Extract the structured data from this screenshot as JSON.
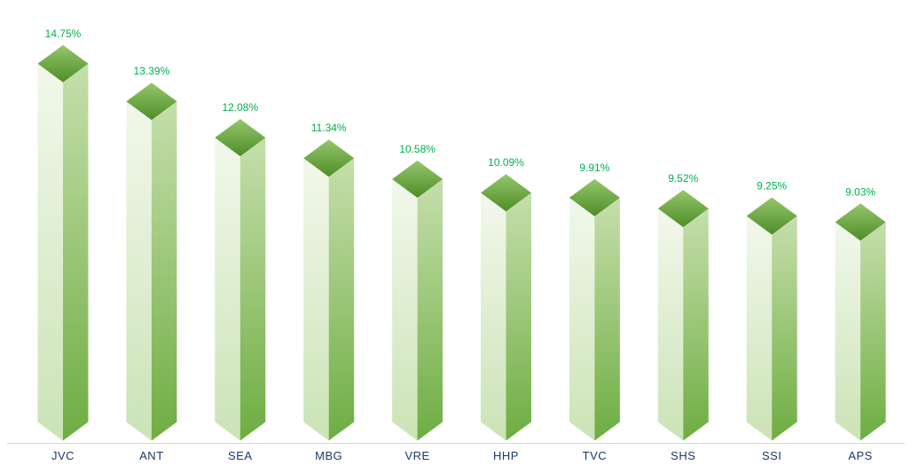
{
  "chart_data": {
    "type": "bar",
    "variant": "3d-column-diamond-top",
    "title": "",
    "xlabel": "",
    "ylabel": "",
    "grid": false,
    "legend": false,
    "categories": [
      "JVC",
      "ANT",
      "SEA",
      "MBG",
      "VRE",
      "HHP",
      "TVC",
      "SHS",
      "SSI",
      "APS"
    ],
    "values": [
      14.75,
      13.39,
      12.08,
      11.34,
      10.58,
      10.09,
      9.91,
      9.52,
      9.25,
      9.03
    ],
    "value_labels": [
      "14.75%",
      "13.39%",
      "12.08%",
      "11.34%",
      "10.58%",
      "10.09%",
      "9.91%",
      "9.52%",
      "9.25%",
      "9.03%"
    ],
    "ylim": [
      0,
      16
    ],
    "colors": {
      "value_label": "#00B050",
      "category_label": "#1F3864",
      "axis_line": "#D9D9D9",
      "bar_top_gradient": [
        "#95C76B",
        "#4E8D28"
      ],
      "bar_left_gradient": [
        "#F2F8EC",
        "#CBE3B5"
      ],
      "bar_right_gradient": [
        "#C6DFAC",
        "#6EAD42"
      ]
    }
  }
}
